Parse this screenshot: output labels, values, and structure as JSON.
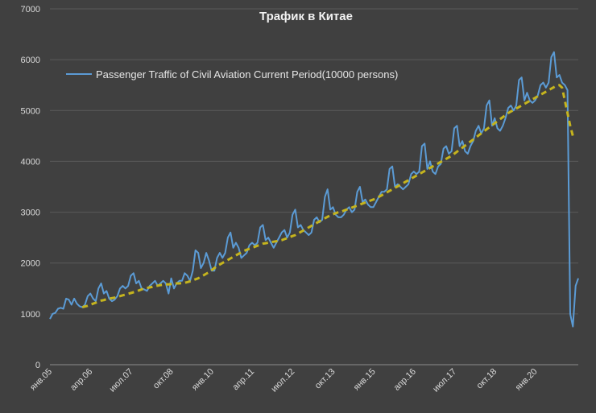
{
  "chart_data": {
    "type": "line",
    "title": "Трафик в Китае",
    "xlabel": "",
    "ylabel": "",
    "ylim": [
      0,
      7000
    ],
    "yticks": [
      0,
      1000,
      2000,
      3000,
      4000,
      5000,
      6000,
      7000
    ],
    "xtick_labels": [
      "янв.05",
      "апр.06",
      "июл.07",
      "окт.08",
      "янв.10",
      "апр.11",
      "июл.12",
      "окт.13",
      "янв.15",
      "апр.16",
      "июл.17",
      "окт.18",
      "янв.20"
    ],
    "grid": "horizontal",
    "legend": "top-left",
    "x_start": "2005-01",
    "x_end": "2020-04",
    "series": [
      {
        "name": "Passenger Traffic of Civil Aviation Current Period(10000 persons)",
        "color": "#5b9bd5",
        "style": "solid",
        "values": [
          900,
          1000,
          1020,
          1100,
          1120,
          1100,
          1300,
          1280,
          1180,
          1300,
          1200,
          1150,
          1130,
          1180,
          1350,
          1400,
          1300,
          1250,
          1500,
          1600,
          1400,
          1450,
          1300,
          1250,
          1280,
          1350,
          1500,
          1550,
          1500,
          1550,
          1750,
          1800,
          1600,
          1650,
          1500,
          1480,
          1450,
          1550,
          1600,
          1650,
          1550,
          1600,
          1650,
          1600,
          1400,
          1700,
          1500,
          1600,
          1650,
          1650,
          1800,
          1750,
          1650,
          1850,
          2250,
          2200,
          1900,
          2000,
          2200,
          2050,
          1850,
          1850,
          2100,
          2200,
          2100,
          2200,
          2500,
          2600,
          2300,
          2400,
          2300,
          2100,
          2150,
          2200,
          2350,
          2400,
          2350,
          2400,
          2700,
          2750,
          2450,
          2500,
          2400,
          2300,
          2400,
          2500,
          2600,
          2650,
          2500,
          2600,
          2950,
          3050,
          2700,
          2750,
          2650,
          2600,
          2550,
          2600,
          2850,
          2900,
          2800,
          2850,
          3300,
          3450,
          3050,
          3100,
          2950,
          2900,
          2900,
          2950,
          3050,
          3100,
          3000,
          3050,
          3400,
          3500,
          3200,
          3250,
          3150,
          3100,
          3100,
          3200,
          3300,
          3400,
          3400,
          3450,
          3850,
          3900,
          3500,
          3550,
          3500,
          3450,
          3500,
          3550,
          3750,
          3800,
          3750,
          3800,
          4300,
          4350,
          3850,
          4000,
          3800,
          3750,
          3900,
          3950,
          4250,
          4300,
          4150,
          4200,
          4650,
          4700,
          4300,
          4400,
          4200,
          4150,
          4300,
          4400,
          4600,
          4700,
          4550,
          4650,
          5100,
          5200,
          4700,
          4850,
          4650,
          4600,
          4700,
          4850,
          5050,
          5100,
          5000,
          5100,
          5600,
          5650,
          5200,
          5350,
          5200,
          5150,
          5200,
          5300,
          5500,
          5550,
          5450,
          5550,
          6050,
          6150,
          5650,
          5700,
          5550,
          5500,
          5400,
          1000,
          750,
          1550,
          1700
        ]
      },
      {
        "name": "",
        "color": "#c5b41e",
        "style": "dashed",
        "values": [
          null,
          null,
          null,
          null,
          null,
          null,
          null,
          null,
          null,
          null,
          null,
          null,
          1130,
          1145,
          1160,
          1180,
          1200,
          1220,
          1240,
          1260,
          1270,
          1290,
          1300,
          1310,
          1320,
          1335,
          1350,
          1365,
          1380,
          1395,
          1410,
          1425,
          1440,
          1460,
          1480,
          1500,
          1510,
          1520,
          1530,
          1545,
          1555,
          1565,
          1575,
          1580,
          1580,
          1585,
          1590,
          1600,
          1600,
          1605,
          1610,
          1625,
          1640,
          1660,
          1680,
          1700,
          1730,
          1760,
          1790,
          1820,
          1860,
          1900,
          1940,
          1970,
          2000,
          2030,
          2060,
          2090,
          2120,
          2150,
          2180,
          2210,
          2240,
          2260,
          2280,
          2300,
          2320,
          2340,
          2360,
          2380,
          2390,
          2400,
          2410,
          2420,
          2430,
          2440,
          2450,
          2470,
          2490,
          2510,
          2530,
          2550,
          2580,
          2610,
          2640,
          2670,
          2700,
          2730,
          2760,
          2790,
          2820,
          2850,
          2880,
          2910,
          2940,
          2960,
          2980,
          3000,
          3010,
          3030,
          3050,
          3070,
          3090,
          3110,
          3130,
          3150,
          3170,
          3190,
          3210,
          3230,
          3250,
          3270,
          3300,
          3330,
          3360,
          3390,
          3420,
          3450,
          3480,
          3510,
          3540,
          3570,
          3600,
          3630,
          3660,
          3690,
          3720,
          3750,
          3780,
          3810,
          3840,
          3870,
          3900,
          3930,
          3960,
          3990,
          4020,
          4050,
          4080,
          4110,
          4150,
          4190,
          4230,
          4270,
          4310,
          4350,
          4390,
          4430,
          4470,
          4510,
          4550,
          4590,
          4630,
          4670,
          4710,
          4750,
          4790,
          4830,
          4870,
          4910,
          4950,
          4980,
          5010,
          5040,
          5070,
          5100,
          5130,
          5160,
          5190,
          5220,
          5250,
          5280,
          5310,
          5340,
          5370,
          5400,
          5430,
          5460,
          5490,
          5500,
          5450,
          5200,
          4950,
          4700,
          4500
        ]
      }
    ]
  }
}
